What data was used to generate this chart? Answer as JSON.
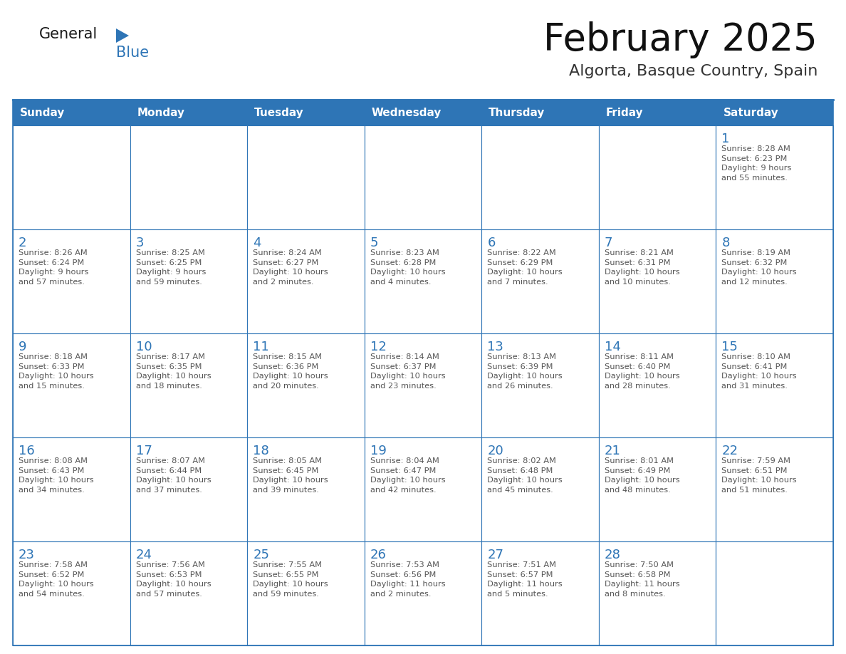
{
  "title": "February 2025",
  "subtitle": "Algorta, Basque Country, Spain",
  "header_bg": "#2E75B6",
  "header_text_color": "#FFFFFF",
  "border_color": "#2E75B6",
  "title_color": "#111111",
  "subtitle_color": "#333333",
  "day_number_color": "#2E75B6",
  "info_text_color": "#555555",
  "days_of_week": [
    "Sunday",
    "Monday",
    "Tuesday",
    "Wednesday",
    "Thursday",
    "Friday",
    "Saturday"
  ],
  "weeks": [
    [
      {
        "day": "",
        "info": ""
      },
      {
        "day": "",
        "info": ""
      },
      {
        "day": "",
        "info": ""
      },
      {
        "day": "",
        "info": ""
      },
      {
        "day": "",
        "info": ""
      },
      {
        "day": "",
        "info": ""
      },
      {
        "day": "1",
        "info": "Sunrise: 8:28 AM\nSunset: 6:23 PM\nDaylight: 9 hours\nand 55 minutes."
      }
    ],
    [
      {
        "day": "2",
        "info": "Sunrise: 8:26 AM\nSunset: 6:24 PM\nDaylight: 9 hours\nand 57 minutes."
      },
      {
        "day": "3",
        "info": "Sunrise: 8:25 AM\nSunset: 6:25 PM\nDaylight: 9 hours\nand 59 minutes."
      },
      {
        "day": "4",
        "info": "Sunrise: 8:24 AM\nSunset: 6:27 PM\nDaylight: 10 hours\nand 2 minutes."
      },
      {
        "day": "5",
        "info": "Sunrise: 8:23 AM\nSunset: 6:28 PM\nDaylight: 10 hours\nand 4 minutes."
      },
      {
        "day": "6",
        "info": "Sunrise: 8:22 AM\nSunset: 6:29 PM\nDaylight: 10 hours\nand 7 minutes."
      },
      {
        "day": "7",
        "info": "Sunrise: 8:21 AM\nSunset: 6:31 PM\nDaylight: 10 hours\nand 10 minutes."
      },
      {
        "day": "8",
        "info": "Sunrise: 8:19 AM\nSunset: 6:32 PM\nDaylight: 10 hours\nand 12 minutes."
      }
    ],
    [
      {
        "day": "9",
        "info": "Sunrise: 8:18 AM\nSunset: 6:33 PM\nDaylight: 10 hours\nand 15 minutes."
      },
      {
        "day": "10",
        "info": "Sunrise: 8:17 AM\nSunset: 6:35 PM\nDaylight: 10 hours\nand 18 minutes."
      },
      {
        "day": "11",
        "info": "Sunrise: 8:15 AM\nSunset: 6:36 PM\nDaylight: 10 hours\nand 20 minutes."
      },
      {
        "day": "12",
        "info": "Sunrise: 8:14 AM\nSunset: 6:37 PM\nDaylight: 10 hours\nand 23 minutes."
      },
      {
        "day": "13",
        "info": "Sunrise: 8:13 AM\nSunset: 6:39 PM\nDaylight: 10 hours\nand 26 minutes."
      },
      {
        "day": "14",
        "info": "Sunrise: 8:11 AM\nSunset: 6:40 PM\nDaylight: 10 hours\nand 28 minutes."
      },
      {
        "day": "15",
        "info": "Sunrise: 8:10 AM\nSunset: 6:41 PM\nDaylight: 10 hours\nand 31 minutes."
      }
    ],
    [
      {
        "day": "16",
        "info": "Sunrise: 8:08 AM\nSunset: 6:43 PM\nDaylight: 10 hours\nand 34 minutes."
      },
      {
        "day": "17",
        "info": "Sunrise: 8:07 AM\nSunset: 6:44 PM\nDaylight: 10 hours\nand 37 minutes."
      },
      {
        "day": "18",
        "info": "Sunrise: 8:05 AM\nSunset: 6:45 PM\nDaylight: 10 hours\nand 39 minutes."
      },
      {
        "day": "19",
        "info": "Sunrise: 8:04 AM\nSunset: 6:47 PM\nDaylight: 10 hours\nand 42 minutes."
      },
      {
        "day": "20",
        "info": "Sunrise: 8:02 AM\nSunset: 6:48 PM\nDaylight: 10 hours\nand 45 minutes."
      },
      {
        "day": "21",
        "info": "Sunrise: 8:01 AM\nSunset: 6:49 PM\nDaylight: 10 hours\nand 48 minutes."
      },
      {
        "day": "22",
        "info": "Sunrise: 7:59 AM\nSunset: 6:51 PM\nDaylight: 10 hours\nand 51 minutes."
      }
    ],
    [
      {
        "day": "23",
        "info": "Sunrise: 7:58 AM\nSunset: 6:52 PM\nDaylight: 10 hours\nand 54 minutes."
      },
      {
        "day": "24",
        "info": "Sunrise: 7:56 AM\nSunset: 6:53 PM\nDaylight: 10 hours\nand 57 minutes."
      },
      {
        "day": "25",
        "info": "Sunrise: 7:55 AM\nSunset: 6:55 PM\nDaylight: 10 hours\nand 59 minutes."
      },
      {
        "day": "26",
        "info": "Sunrise: 7:53 AM\nSunset: 6:56 PM\nDaylight: 11 hours\nand 2 minutes."
      },
      {
        "day": "27",
        "info": "Sunrise: 7:51 AM\nSunset: 6:57 PM\nDaylight: 11 hours\nand 5 minutes."
      },
      {
        "day": "28",
        "info": "Sunrise: 7:50 AM\nSunset: 6:58 PM\nDaylight: 11 hours\nand 8 minutes."
      },
      {
        "day": "",
        "info": ""
      }
    ]
  ],
  "logo_general_color": "#1a1a1a",
  "logo_blue_color": "#2E75B6",
  "fig_width": 11.88,
  "fig_height": 9.18,
  "dpi": 100
}
